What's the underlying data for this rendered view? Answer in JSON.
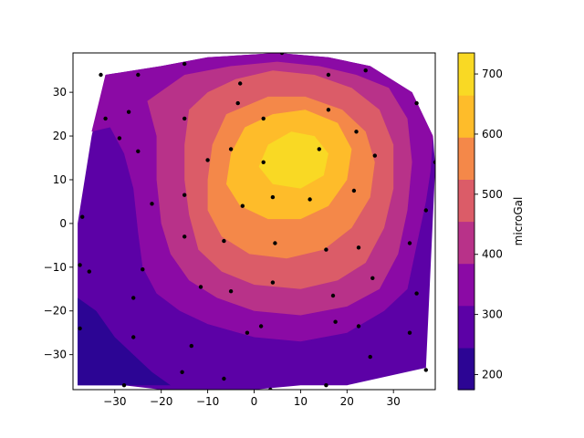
{
  "chart_data": {
    "type": "contourf",
    "xlim": [
      -39,
      39
    ],
    "ylim": [
      -38,
      39
    ],
    "x_ticks": [
      -30,
      -20,
      -10,
      0,
      10,
      20,
      30
    ],
    "y_ticks": [
      -30,
      -20,
      -10,
      0,
      10,
      20,
      30
    ],
    "x_tick_labels": [
      "−30",
      "−20",
      "−10",
      "0",
      "10",
      "20",
      "30"
    ],
    "y_tick_labels": [
      "−30",
      "−20",
      "−10",
      "0",
      "10",
      "20",
      "30"
    ],
    "grid": false,
    "colorbar": {
      "label": "microGal",
      "range": [
        175,
        735
      ],
      "ticks": [
        200,
        300,
        400,
        500,
        600,
        700
      ],
      "tick_labels": [
        "200",
        "300",
        "400",
        "500",
        "600",
        "700"
      ],
      "colormap": "plasma",
      "placement": "right"
    },
    "levels": [
      {
        "range": [
          175,
          245
        ],
        "color": "#2c0594"
      },
      {
        "range": [
          245,
          315
        ],
        "color": "#5c01a6"
      },
      {
        "range": [
          315,
          385
        ],
        "color": "#8b0aa5"
      },
      {
        "range": [
          385,
          455
        ],
        "color": "#b83289"
      },
      {
        "range": [
          455,
          525
        ],
        "color": "#db5c68"
      },
      {
        "range": [
          525,
          595
        ],
        "color": "#f48849"
      },
      {
        "range": [
          595,
          665
        ],
        "color": "#febc2a"
      },
      {
        "range": [
          665,
          735
        ],
        "color": "#f9d924"
      }
    ],
    "hull": [
      [
        -38,
        -37
      ],
      [
        -28,
        -37
      ],
      [
        -20,
        -38
      ],
      [
        -10,
        -38
      ],
      [
        0,
        -38
      ],
      [
        10,
        -37
      ],
      [
        20,
        -37
      ],
      [
        37,
        -33
      ],
      [
        39,
        13
      ],
      [
        38.5,
        20
      ],
      [
        34,
        30
      ],
      [
        25,
        36
      ],
      [
        16,
        38
      ],
      [
        5,
        39
      ],
      [
        -10,
        38
      ],
      [
        -20,
        36
      ],
      [
        -32,
        34
      ],
      [
        -35,
        20
      ],
      [
        -38,
        0
      ]
    ],
    "contours": [
      [
        [
          -38,
          -17
        ],
        [
          -34,
          -20
        ],
        [
          -30,
          -26
        ],
        [
          -26,
          -30
        ],
        [
          -22,
          -34
        ],
        [
          -18,
          -37
        ],
        [
          -38,
          -37
        ]
      ],
      [
        [
          -38,
          5
        ],
        [
          -37,
          -5
        ],
        [
          -35,
          -14
        ],
        [
          -31,
          -19
        ],
        [
          -25,
          -22
        ],
        [
          -20,
          -27
        ],
        [
          -12,
          -30
        ],
        [
          -5,
          -32
        ],
        [
          5,
          -32
        ],
        [
          15,
          -31
        ],
        [
          25,
          -30
        ],
        [
          33,
          -26
        ],
        [
          37,
          -23
        ],
        [
          37,
          -33
        ],
        [
          20,
          -37
        ],
        [
          10,
          -37
        ],
        [
          0,
          -38
        ],
        [
          -10,
          -38
        ],
        [
          -20,
          -38
        ],
        [
          -28,
          -37
        ],
        [
          -38,
          -37
        ]
      ],
      [
        [
          -35,
          21
        ],
        [
          -31,
          22
        ],
        [
          -28,
          16
        ],
        [
          -26,
          8
        ],
        [
          -25,
          -2
        ],
        [
          -24,
          -10
        ],
        [
          -21,
          -16
        ],
        [
          -16,
          -20
        ],
        [
          -10,
          -23
        ],
        [
          0,
          -26
        ],
        [
          10,
          -27
        ],
        [
          20,
          -25
        ],
        [
          28,
          -20
        ],
        [
          33,
          -15
        ],
        [
          35,
          -5
        ],
        [
          37,
          5
        ],
        [
          38,
          12
        ],
        [
          38.5,
          20
        ],
        [
          34,
          30
        ],
        [
          25,
          36
        ],
        [
          16,
          38
        ],
        [
          5,
          39
        ],
        [
          -10,
          38
        ],
        [
          -20,
          36
        ],
        [
          -32,
          34
        ]
      ],
      [
        [
          -23,
          28
        ],
        [
          -21,
          20
        ],
        [
          -21,
          10
        ],
        [
          -20,
          0
        ],
        [
          -18,
          -7
        ],
        [
          -14,
          -13
        ],
        [
          -8,
          -17
        ],
        [
          0,
          -20
        ],
        [
          10,
          -21
        ],
        [
          20,
          -19
        ],
        [
          27,
          -15
        ],
        [
          31,
          -7
        ],
        [
          33,
          3
        ],
        [
          34,
          14
        ],
        [
          33,
          24
        ],
        [
          29,
          31
        ],
        [
          22,
          34
        ],
        [
          14,
          36
        ],
        [
          5,
          37
        ],
        [
          -5,
          36
        ],
        [
          -15,
          34
        ]
      ],
      [
        [
          -14,
          26
        ],
        [
          -15,
          18
        ],
        [
          -15,
          10
        ],
        [
          -14,
          2
        ],
        [
          -12,
          -6
        ],
        [
          -7,
          -11
        ],
        [
          0,
          -14
        ],
        [
          10,
          -15
        ],
        [
          18,
          -13
        ],
        [
          24,
          -9
        ],
        [
          28,
          -1
        ],
        [
          30,
          8
        ],
        [
          30,
          18
        ],
        [
          27,
          26
        ],
        [
          21,
          31
        ],
        [
          13,
          34
        ],
        [
          4,
          35
        ],
        [
          -4,
          33
        ],
        [
          -10,
          30
        ]
      ],
      [
        [
          -6,
          25
        ],
        [
          -9,
          18
        ],
        [
          -10,
          10
        ],
        [
          -10,
          3
        ],
        [
          -7,
          -3
        ],
        [
          -1,
          -7
        ],
        [
          7,
          -8
        ],
        [
          15,
          -6
        ],
        [
          21,
          -1
        ],
        [
          25,
          6
        ],
        [
          26,
          14
        ],
        [
          24,
          21
        ],
        [
          19,
          26
        ],
        [
          11,
          29
        ],
        [
          3,
          29
        ]
      ],
      [
        [
          -2,
          22
        ],
        [
          -5,
          16
        ],
        [
          -6,
          9
        ],
        [
          -3,
          4
        ],
        [
          3,
          1
        ],
        [
          10,
          1
        ],
        [
          16,
          4
        ],
        [
          20,
          10
        ],
        [
          21,
          17
        ],
        [
          18,
          23
        ],
        [
          11,
          26
        ],
        [
          4,
          25
        ]
      ],
      [
        [
          3,
          18
        ],
        [
          1,
          13
        ],
        [
          4,
          9
        ],
        [
          10,
          8
        ],
        [
          15,
          11
        ],
        [
          16,
          16
        ],
        [
          13,
          20
        ],
        [
          8,
          21
        ]
      ]
    ],
    "points": [
      [
        -33,
        34
      ],
      [
        -25,
        34
      ],
      [
        -15,
        36.5
      ],
      [
        -3,
        32
      ],
      [
        6,
        39
      ],
      [
        16,
        34
      ],
      [
        24,
        35
      ],
      [
        -32,
        24
      ],
      [
        -27,
        25.5
      ],
      [
        -15,
        24
      ],
      [
        -3.5,
        27.5
      ],
      [
        2,
        24
      ],
      [
        16,
        26
      ],
      [
        22,
        21
      ],
      [
        35,
        27.5
      ],
      [
        -29,
        19.5
      ],
      [
        -25,
        16.5
      ],
      [
        -10,
        14.5
      ],
      [
        -5,
        17
      ],
      [
        2,
        14
      ],
      [
        14,
        17
      ],
      [
        26,
        15.5
      ],
      [
        39,
        14
      ],
      [
        -15,
        6.5
      ],
      [
        -2.5,
        4
      ],
      [
        4,
        6
      ],
      [
        12,
        5.5
      ],
      [
        21.5,
        7.5
      ],
      [
        37,
        3
      ],
      [
        -37,
        1.5
      ],
      [
        -22,
        4.5
      ],
      [
        -15,
        -3
      ],
      [
        -6.5,
        -4
      ],
      [
        4.5,
        -4.5
      ],
      [
        15.5,
        -6
      ],
      [
        22.5,
        -5.5
      ],
      [
        33.5,
        -4.5
      ],
      [
        -37.5,
        -9.5
      ],
      [
        -35.5,
        -11
      ],
      [
        -24,
        -10.5
      ],
      [
        -11.5,
        -14.5
      ],
      [
        -5,
        -15.5
      ],
      [
        4,
        -13.5
      ],
      [
        17,
        -16.5
      ],
      [
        25.5,
        -12.5
      ],
      [
        35,
        -16
      ],
      [
        -26,
        -17
      ],
      [
        -1.5,
        -25
      ],
      [
        1.5,
        -23.5
      ],
      [
        17.5,
        -22.5
      ],
      [
        22.5,
        -23.5
      ],
      [
        33.5,
        -25
      ],
      [
        -37.5,
        -24
      ],
      [
        -26,
        -26
      ],
      [
        -13.5,
        -28
      ],
      [
        25,
        -30.5
      ],
      [
        37,
        -33.5
      ],
      [
        -28,
        -37
      ],
      [
        -15.5,
        -34
      ],
      [
        -6.5,
        -35.5
      ],
      [
        15.5,
        -37
      ],
      [
        3.5,
        -38
      ]
    ]
  }
}
